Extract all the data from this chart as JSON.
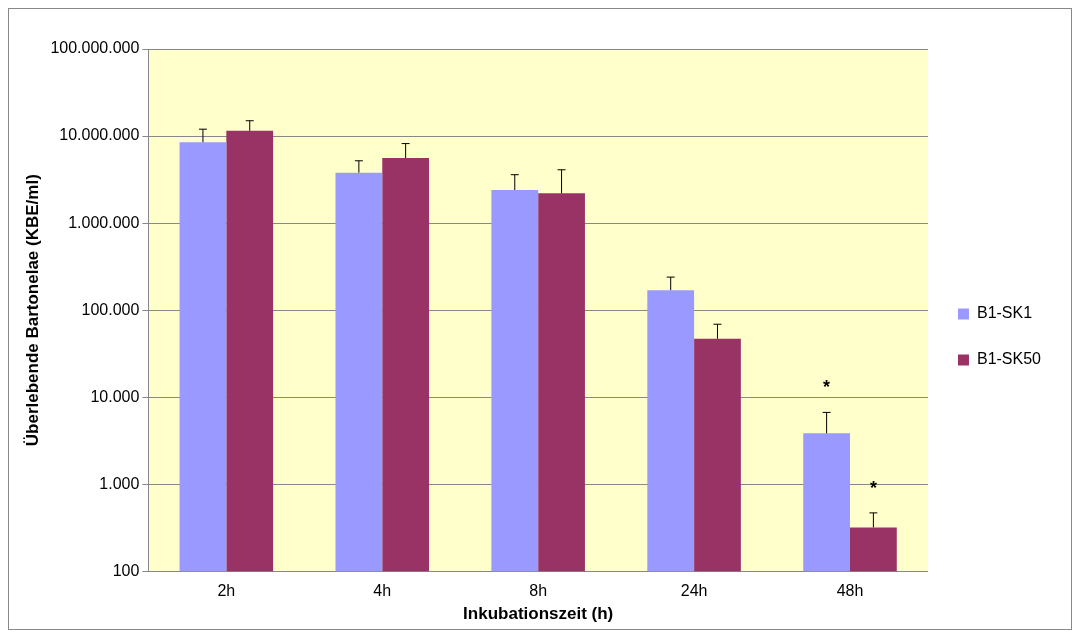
{
  "chart_data": {
    "type": "bar",
    "xlabel": "Inkubationszeit (h)",
    "ylabel": "Überlebende Bartonelae (KBE/ml)",
    "categories": [
      "2h",
      "4h",
      "8h",
      "24h",
      "48h"
    ],
    "series": [
      {
        "name": "B1-SK1",
        "color": "#9999ff",
        "values": [
          8500000,
          3800000,
          2400000,
          170000,
          3850
        ],
        "errors": [
          [
            8500000,
            12000000
          ],
          [
            3800000,
            5200000
          ],
          [
            2400000,
            3600000
          ],
          [
            170000,
            240000
          ],
          [
            3850,
            6700
          ]
        ]
      },
      {
        "name": "B1-SK50",
        "color": "#993366",
        "values": [
          11500000,
          5600000,
          2200000,
          47000,
          320
        ],
        "errors": [
          [
            11500000,
            15000000
          ],
          [
            5600000,
            8200000
          ],
          [
            2200000,
            4100000
          ],
          [
            47000,
            69000
          ],
          [
            320,
            470
          ]
        ]
      }
    ],
    "log": "y",
    "ylim": [
      100,
      100000000
    ],
    "yticks": [
      {
        "value": 100,
        "label": "100"
      },
      {
        "value": 1000,
        "label": "1.000"
      },
      {
        "value": 10000,
        "label": "10.000"
      },
      {
        "value": 100000,
        "label": "100.000"
      },
      {
        "value": 1000000,
        "label": "1.000.000"
      },
      {
        "value": 10000000,
        "label": "10.000.000"
      },
      {
        "value": 100000000,
        "label": "100.000.000"
      }
    ],
    "grid": "y",
    "legend": "right",
    "annotations": [
      "*",
      "*"
    ]
  }
}
